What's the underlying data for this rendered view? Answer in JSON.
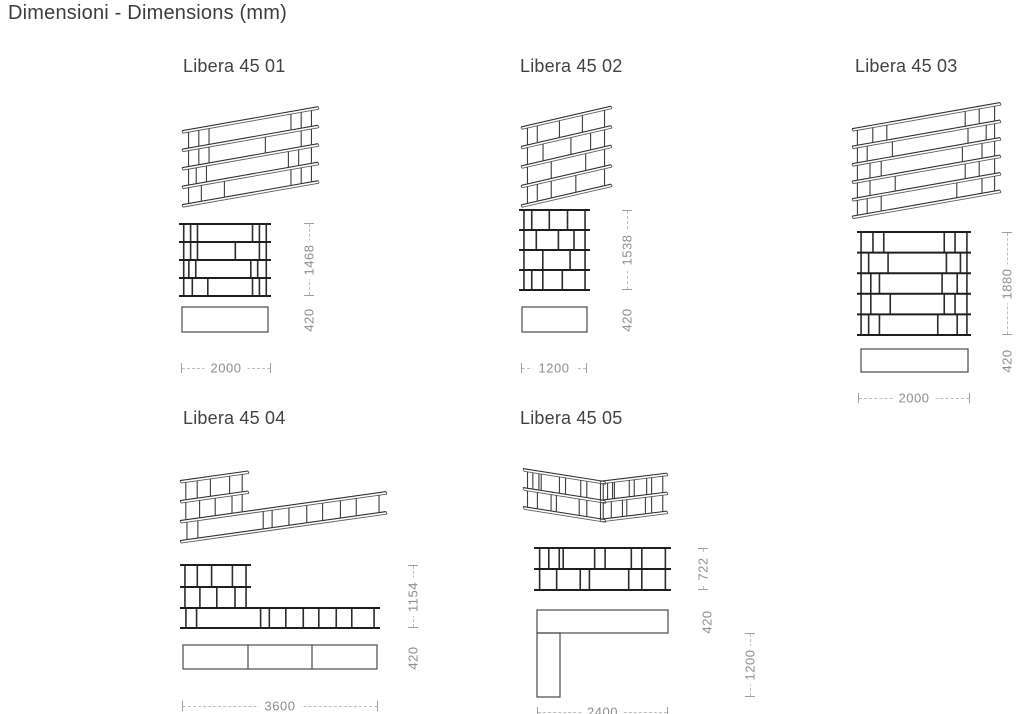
{
  "title": "Dimensioni - Dimensions (mm)",
  "units": [
    {
      "name": "Libera 45 01",
      "dims": {
        "height": "1468",
        "depth": "420",
        "width": "2000"
      }
    },
    {
      "name": "Libera 45 02",
      "dims": {
        "height": "1538",
        "depth": "420",
        "width": "1200"
      }
    },
    {
      "name": "Libera 45 03",
      "dims": {
        "height": "1880",
        "depth": "420",
        "width": "2000"
      }
    },
    {
      "name": "Libera 45 04",
      "dims": {
        "height": "1154",
        "depth": "420",
        "width": "3600"
      }
    },
    {
      "name": "Libera 45 05",
      "dims": {
        "height": "722",
        "depth": "420",
        "leg": "1200",
        "width": "2400"
      }
    }
  ]
}
